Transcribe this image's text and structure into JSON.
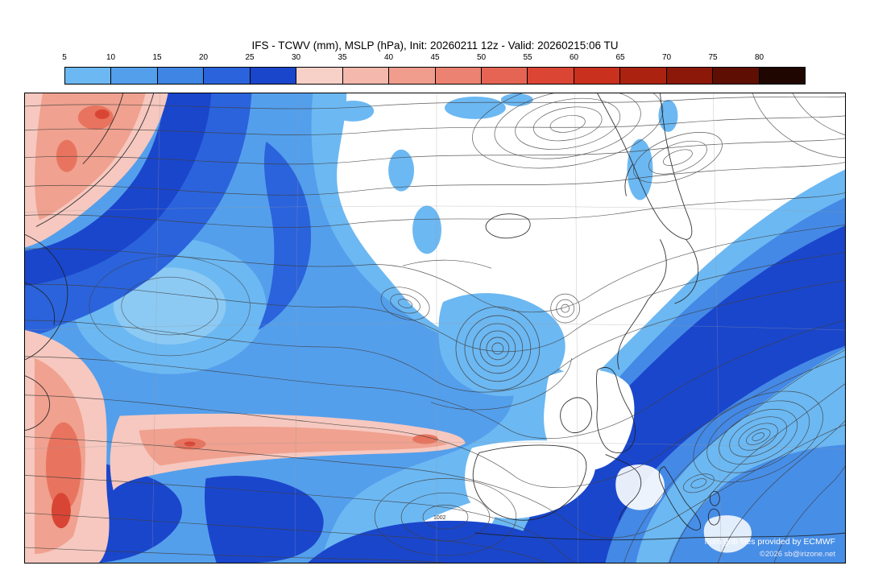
{
  "title": "IFS - TCWV (mm), MSLP (hPa), Init: 20260211 12z - Valid: 20260215:06 TU",
  "colorbar": {
    "ticks": [
      "5",
      "10",
      "15",
      "20",
      "25",
      "30",
      "35",
      "40",
      "45",
      "50",
      "55",
      "60",
      "65",
      "70",
      "75",
      "80"
    ],
    "colors": [
      "#6cb8f2",
      "#549fec",
      "#3f85e4",
      "#2b63dc",
      "#1a46cc",
      "#f7d0c8",
      "#f4b8ac",
      "#f09d8e",
      "#ec8271",
      "#e56454",
      "#db4634",
      "#c9301e",
      "#ab2310",
      "#8b1808",
      "#5f0e03",
      "#200601"
    ]
  },
  "map": {
    "pressure_label": "1002",
    "credits": {
      "line1": "from grib files provided by ECMWF",
      "line2": "©2026 sb@irizone.net"
    }
  }
}
